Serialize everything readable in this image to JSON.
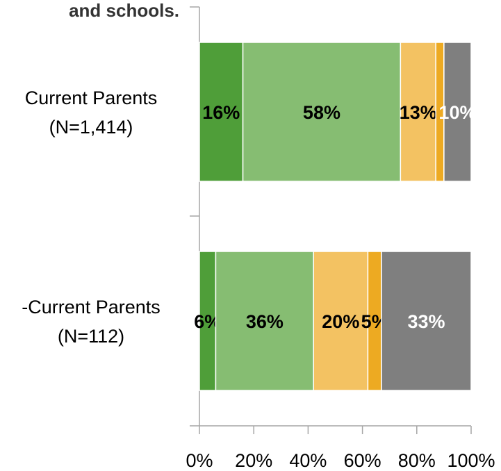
{
  "chart_data": {
    "type": "bar",
    "orientation": "horizontal",
    "stacked": true,
    "title": "and schools.",
    "categories": [
      {
        "line1": "Current Parents",
        "line2": "(N=1,414)"
      },
      {
        "line1": "-Current Parents",
        "line2": "(N=112)"
      }
    ],
    "series": [
      {
        "color": "#4f9e39",
        "label_color": "#000000",
        "values": [
          16,
          6
        ]
      },
      {
        "color": "#86bd72",
        "label_color": "#000000",
        "values": [
          58,
          36
        ]
      },
      {
        "color": "#f3c262",
        "label_color": "#000000",
        "values": [
          13,
          20
        ]
      },
      {
        "color": "#edaa22",
        "label_color": "#000000",
        "values": [
          3,
          5
        ]
      },
      {
        "color": "#7f7f7f",
        "label_color": "#ffffff",
        "values": [
          10,
          33
        ]
      }
    ],
    "value_labels": [
      [
        "16%",
        "58%",
        "13%",
        "",
        "10%"
      ],
      [
        "6%",
        "36%",
        "20%",
        "5%",
        "33%"
      ]
    ],
    "xlim": [
      0,
      100
    ],
    "xticks": [
      "0%",
      "20%",
      "40%",
      "60%",
      "80%",
      "100%"
    ],
    "grid": false
  }
}
